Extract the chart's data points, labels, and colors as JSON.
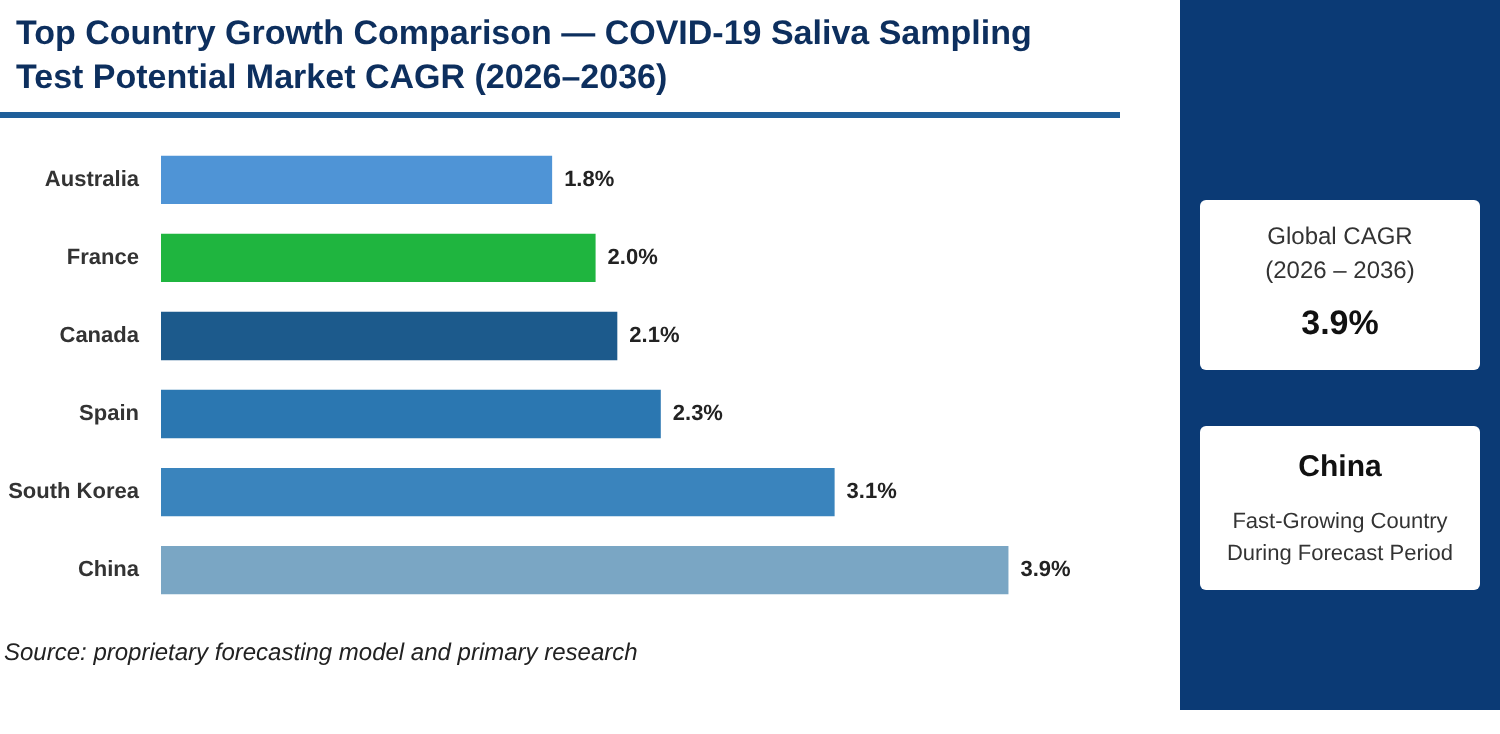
{
  "chart_data": {
    "type": "bar",
    "orientation": "horizontal",
    "title": "Top Country Growth Comparison — COVID-19 Saliva Sampling Test Potential Market CAGR (2026–2036)",
    "categories": [
      "Australia",
      "France",
      "Canada",
      "Spain",
      "South Korea",
      "China"
    ],
    "values": [
      1.8,
      2.0,
      2.1,
      2.3,
      3.1,
      3.9
    ],
    "value_labels": [
      "1.8%",
      "2.0%",
      "2.1%",
      "2.3%",
      "3.1%",
      "3.9%"
    ],
    "colors": [
      "#4f94d6",
      "#1fb53f",
      "#1c5a8c",
      "#2b77b1",
      "#3a84bd",
      "#7aa6c4"
    ],
    "annotations": [
      "Global CAGR\n(2026 – 2036)",
      "3.9%",
      "China",
      "Fast-Growing Country\nDuring Forecast Period",
      "Source: proprietary forecasting model and primary research"
    ],
    "grid": false
  }
}
